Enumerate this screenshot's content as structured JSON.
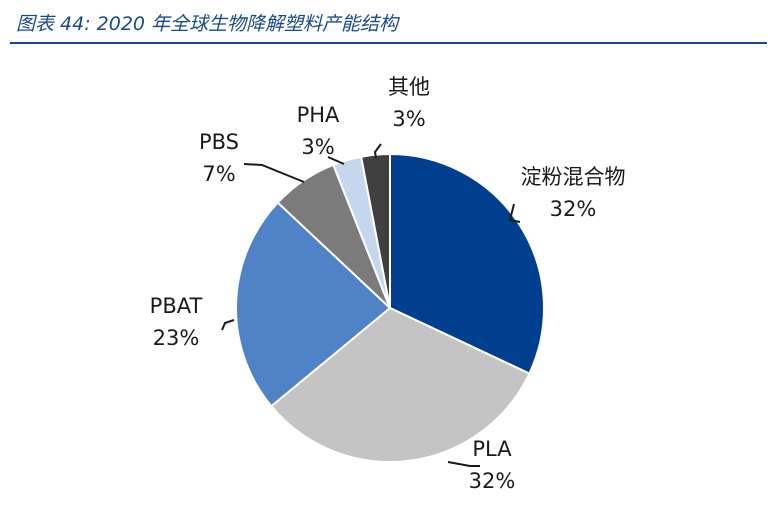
{
  "figure": {
    "title": "图表 44:  2020 年全球生物降解塑料产能结构"
  },
  "chart_data": {
    "type": "pie",
    "title": "",
    "unit": "%",
    "series": [
      {
        "label": "淀粉混合物",
        "value": 32,
        "display": "32%",
        "color": "#003f8f"
      },
      {
        "label": "PLA",
        "value": 32,
        "display": "32%",
        "color": "#c4c4c4"
      },
      {
        "label": "PBAT",
        "value": 23,
        "display": "23%",
        "color": "#4f82c6"
      },
      {
        "label": "PBS",
        "value": 7,
        "display": "7%",
        "color": "#7b7b7b"
      },
      {
        "label": "PHA",
        "value": 3,
        "display": "3%",
        "color": "#c5d7ee"
      },
      {
        "label": "其他",
        "value": 3,
        "display": "3%",
        "color": "#404040"
      }
    ]
  }
}
